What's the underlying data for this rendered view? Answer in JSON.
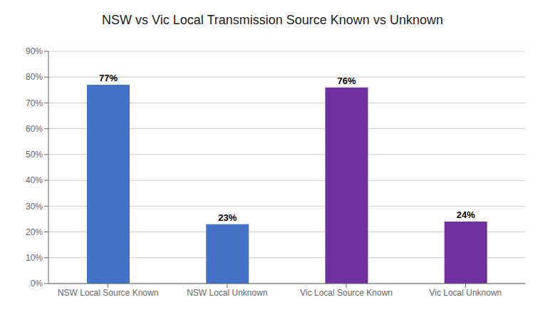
{
  "chart_data": {
    "type": "bar",
    "title": "NSW vs Vic Local Transmission Source Known vs Unknown",
    "categories": [
      "NSW Local Source Known",
      "NSW Local Unknown",
      "Vic Local Source Known",
      "Vic Local Unknown"
    ],
    "values": [
      0.77,
      0.23,
      0.76,
      0.24
    ],
    "value_labels": [
      "77%",
      "23%",
      "76%",
      "24%"
    ],
    "data_labels": true,
    "colors": [
      "#4472C4",
      "#4472C4",
      "#7030A0",
      "#7030A0"
    ],
    "ylim": [
      0,
      0.9
    ],
    "yticks": [
      {
        "value": 0.0,
        "label": "0%"
      },
      {
        "value": 0.1,
        "label": "10%"
      },
      {
        "value": 0.2,
        "label": "20%"
      },
      {
        "value": 0.3,
        "label": "30%"
      },
      {
        "value": 0.4,
        "label": "40%"
      },
      {
        "value": 0.5,
        "label": "50%"
      },
      {
        "value": 0.6,
        "label": "60%"
      },
      {
        "value": 0.7,
        "label": "70%"
      },
      {
        "value": 0.8,
        "label": "80%"
      },
      {
        "value": 0.9,
        "label": "90%"
      }
    ],
    "grid": true
  }
}
